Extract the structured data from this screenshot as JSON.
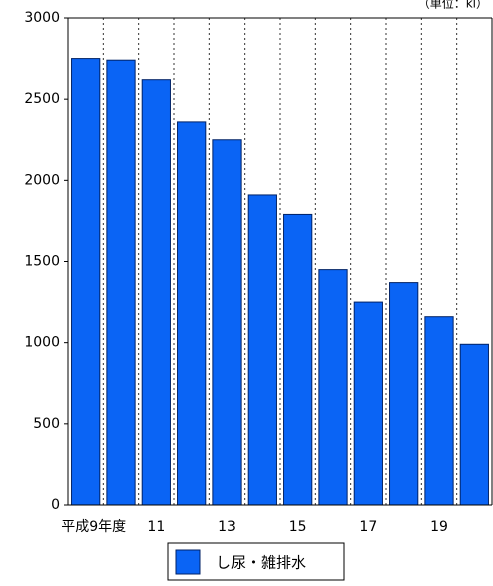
{
  "chart_data": {
    "type": "bar",
    "annotation": "（単位：kl）",
    "categories": [
      "平成9年度",
      null,
      "11",
      null,
      "13",
      null,
      "15",
      null,
      "17",
      null,
      "19",
      null
    ],
    "series": [
      {
        "name": "し尿・雑排水",
        "color": "#0a64f5",
        "values": [
          2750,
          2740,
          2620,
          2360,
          2250,
          1910,
          1790,
          1450,
          1250,
          1370,
          1160,
          990
        ]
      }
    ],
    "ylim": [
      0,
      3000
    ],
    "yticks": [
      0,
      500,
      1000,
      1500,
      2000,
      2500,
      3000
    ],
    "legend": "bottom"
  }
}
